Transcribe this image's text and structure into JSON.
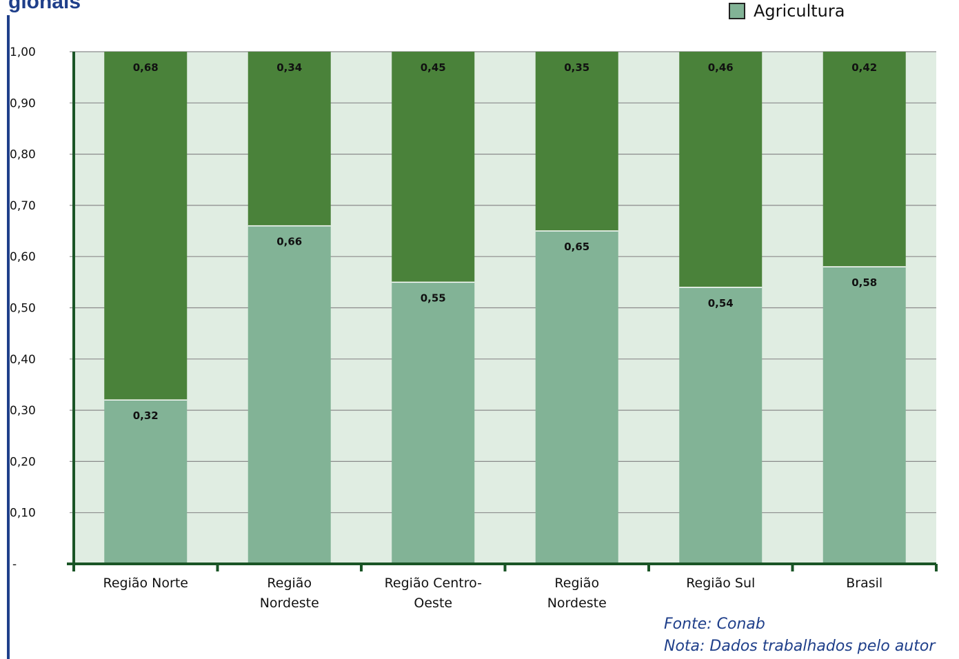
{
  "header": {
    "title": "gionais"
  },
  "legend": {
    "label": "Agricultura"
  },
  "colors": {
    "plot_background": "#e0ede2",
    "lower_segment": "#82b396",
    "upper_segment": "#4a823a",
    "axis": "#1a5526",
    "title": "#1f3f8a",
    "note": "#1f3f8a"
  },
  "chart_data": {
    "type": "bar",
    "stacked": true,
    "categories": [
      "Região Norte",
      "Região Nordeste",
      "Região Centro-Oeste",
      "Região Nordeste",
      "Região Sul",
      "Brasil"
    ],
    "series": [
      {
        "name": "Agricultura",
        "color": "#82b396",
        "values": [
          0.32,
          0.66,
          0.55,
          0.65,
          0.54,
          0.58
        ],
        "labels": [
          "0,32",
          "0,66",
          "0,55",
          "0,65",
          "0,54",
          "0,58"
        ]
      },
      {
        "color": "#4a823a",
        "values": [
          0.68,
          0.34,
          0.45,
          0.35,
          0.46,
          0.42
        ],
        "labels": [
          "0,68",
          "0,34",
          "0,45",
          "0,35",
          "0,46",
          "0,42"
        ]
      }
    ],
    "ylim": [
      0,
      1
    ],
    "yticks": [
      0,
      0.1,
      0.2,
      0.3,
      0.4,
      0.5,
      0.6,
      0.7,
      0.8,
      0.9,
      1.0
    ],
    "ytick_labels": [
      "-",
      "0,10",
      "0,20",
      "0,30",
      "0,40",
      "0,50",
      "0,60",
      "0,70",
      "0,80",
      "0,90",
      "1,00"
    ],
    "xtick_labels": [
      [
        "Região Norte"
      ],
      [
        "Região",
        "Nordeste"
      ],
      [
        "Região Centro-",
        "Oeste"
      ],
      [
        "Região",
        "Nordeste"
      ],
      [
        "Região Sul"
      ],
      [
        "Brasil"
      ]
    ],
    "grid": true,
    "legend_position": "top-right"
  },
  "notes": {
    "source": "Fonte:  Conab",
    "note": "Nota: Dados trabalhados pelo autor"
  }
}
